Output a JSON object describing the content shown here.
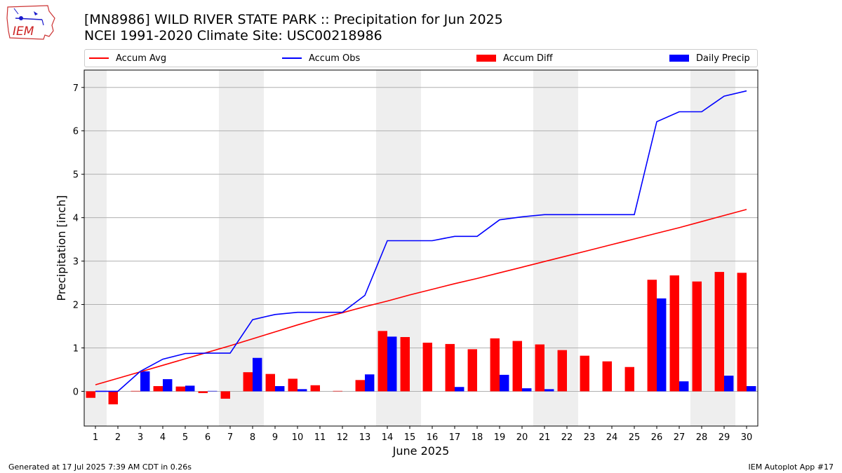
{
  "logo": {
    "text": "IEM"
  },
  "header": {
    "title": "[MN8986] WILD RIVER STATE PARK :: Precipitation for Jun 2025",
    "subtitle": "NCEI 1991-2020 Climate Site: USC00218986"
  },
  "legend": {
    "accum_avg": "Accum Avg",
    "accum_obs": "Accum Obs",
    "accum_diff": "Accum Diff",
    "daily_precip": "Daily Precip"
  },
  "footer": {
    "left": "Generated at 17 Jul 2025 7:39 AM CDT in 0.26s",
    "right": "IEM Autoplot App #17"
  },
  "colors": {
    "accum_avg": "#ff0000",
    "accum_obs": "#0000ff",
    "accum_diff": "#ff0000",
    "daily_precip": "#0000ff",
    "weekend_band": "#eeeeee",
    "grid": "#b0b0b0"
  },
  "chart_data": {
    "type": "bar",
    "xlabel": "June 2025",
    "ylabel": "Precipitation [inch]",
    "ylim": [
      -0.8,
      7.4
    ],
    "yticks": [
      0,
      1,
      2,
      3,
      4,
      5,
      6,
      7
    ],
    "grid": "horizontal",
    "legend_position": "top",
    "weekend_days": [
      1,
      7,
      8,
      14,
      15,
      21,
      22,
      28,
      29
    ],
    "days": [
      1,
      2,
      3,
      4,
      5,
      6,
      7,
      8,
      9,
      10,
      11,
      12,
      13,
      14,
      15,
      16,
      17,
      18,
      19,
      20,
      21,
      22,
      23,
      24,
      25,
      26,
      27,
      28,
      29,
      30
    ],
    "series": [
      {
        "name": "Accum Avg",
        "kind": "line",
        "values": [
          0.15,
          0.3,
          0.45,
          0.6,
          0.75,
          0.9,
          1.05,
          1.21,
          1.37,
          1.53,
          1.68,
          1.81,
          1.95,
          2.08,
          2.22,
          2.35,
          2.48,
          2.6,
          2.73,
          2.86,
          2.99,
          3.12,
          3.25,
          3.38,
          3.51,
          3.64,
          3.77,
          3.91,
          4.05,
          4.19
        ]
      },
      {
        "name": "Accum Obs",
        "kind": "line",
        "values": [
          0.0,
          0.0,
          0.46,
          0.74,
          0.87,
          0.88,
          0.88,
          1.65,
          1.77,
          1.82,
          1.82,
          1.82,
          2.21,
          3.47,
          3.47,
          3.47,
          3.57,
          3.57,
          3.95,
          4.02,
          4.07,
          4.07,
          4.07,
          4.07,
          4.07,
          6.21,
          6.44,
          6.44,
          6.8,
          6.92
        ]
      },
      {
        "name": "Accum Diff",
        "kind": "bar",
        "values": [
          -0.15,
          -0.3,
          0.01,
          0.12,
          0.11,
          -0.04,
          -0.17,
          0.44,
          0.4,
          0.29,
          0.14,
          0.01,
          0.26,
          1.39,
          1.25,
          1.12,
          1.09,
          0.97,
          1.22,
          1.16,
          1.08,
          0.95,
          0.82,
          0.69,
          0.56,
          2.57,
          2.67,
          2.53,
          2.75,
          2.73
        ]
      },
      {
        "name": "Daily Precip",
        "kind": "bar",
        "values": [
          0.0,
          0.0,
          0.46,
          0.28,
          0.13,
          0.01,
          0.0,
          0.77,
          0.12,
          0.05,
          0.0,
          0.0,
          0.39,
          1.26,
          0.0,
          0.0,
          0.1,
          0.0,
          0.38,
          0.07,
          0.05,
          0.0,
          0.0,
          0.0,
          0.0,
          2.14,
          0.23,
          0.0,
          0.36,
          0.12
        ]
      }
    ]
  }
}
